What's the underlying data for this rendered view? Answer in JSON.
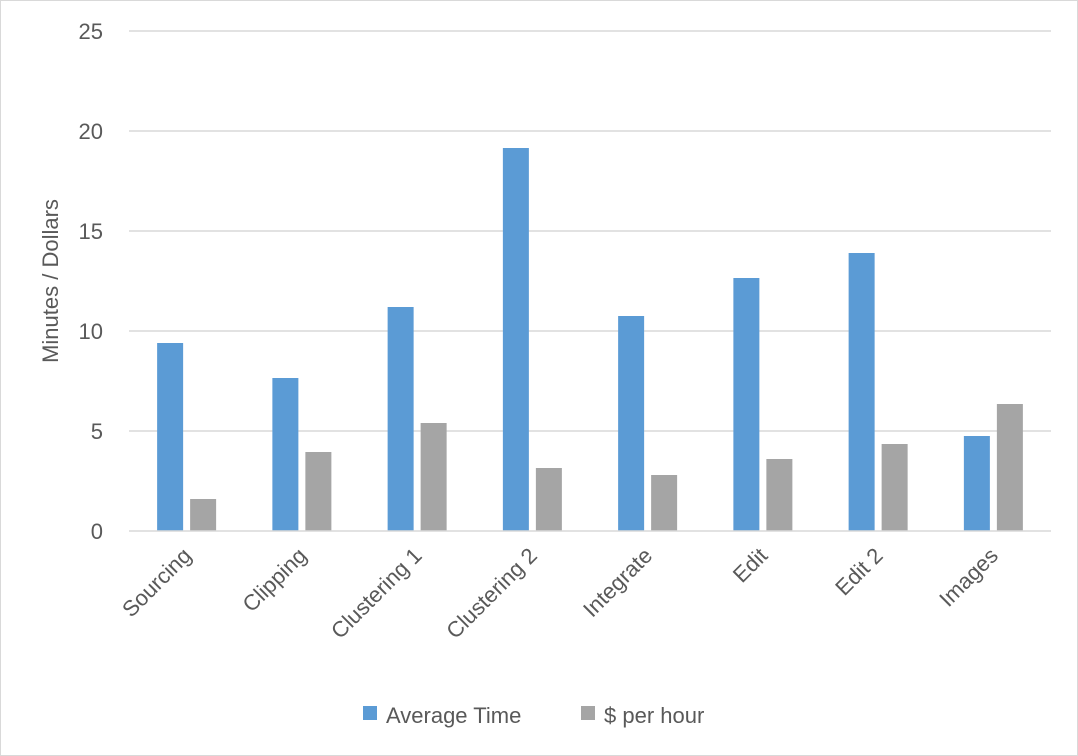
{
  "chart_data": {
    "type": "bar",
    "title": "",
    "xlabel": "",
    "ylabel": "Minutes / Dollars",
    "ylim": [
      0,
      25
    ],
    "yticks": [
      0,
      5,
      10,
      15,
      20,
      25
    ],
    "grid": true,
    "legend_position": "bottom",
    "categories": [
      "Sourcing",
      "Clipping",
      "Clustering 1",
      "Clustering 2",
      "Integrate",
      "Edit",
      "Edit 2",
      "Images"
    ],
    "series": [
      {
        "name": "Average Time",
        "color": "#5b9bd5",
        "values": [
          9.4,
          7.65,
          11.2,
          19.15,
          10.75,
          12.65,
          13.9,
          4.75
        ]
      },
      {
        "name": "$ per hour",
        "color": "#a5a5a5",
        "values": [
          1.6,
          3.95,
          5.4,
          3.15,
          2.8,
          3.6,
          4.35,
          6.35
        ]
      }
    ]
  }
}
